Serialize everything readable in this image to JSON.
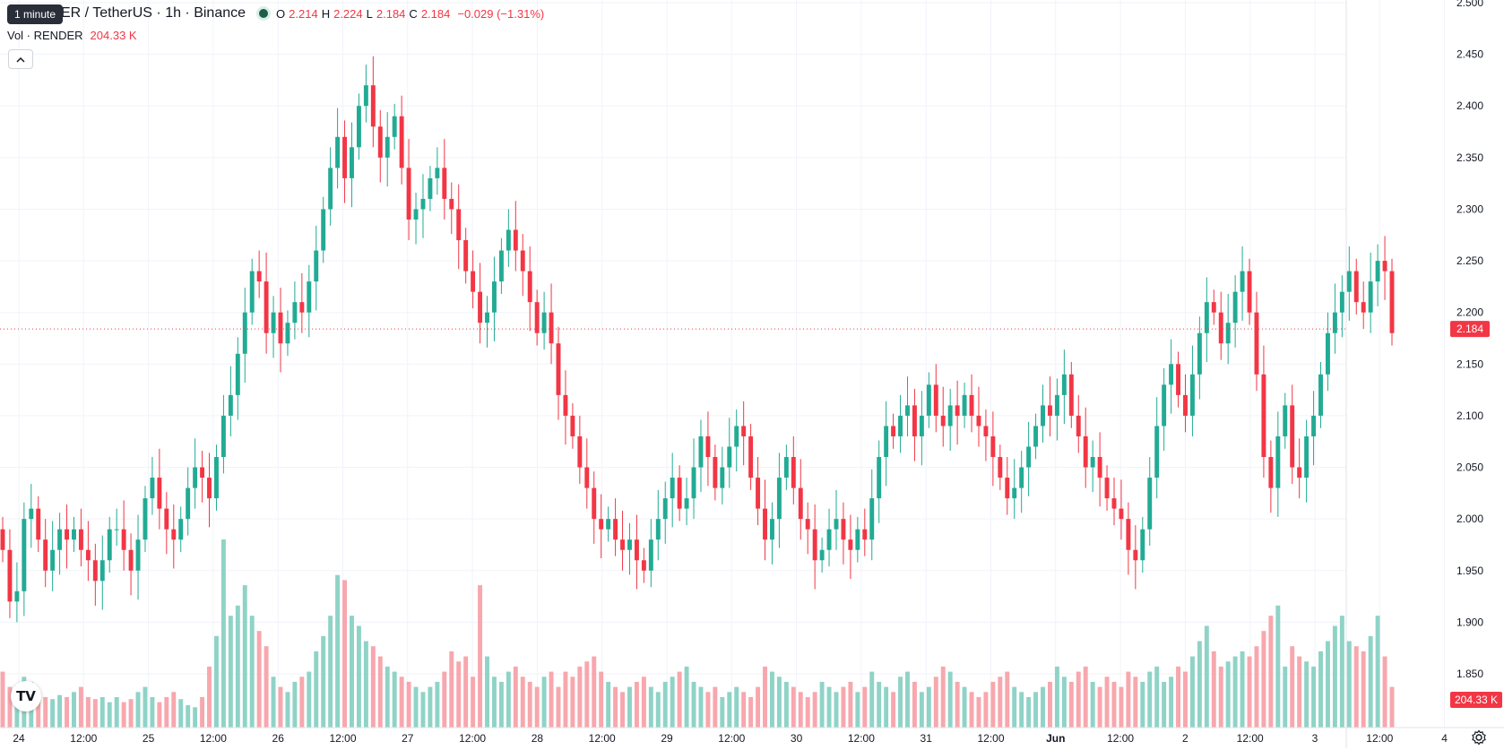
{
  "header": {
    "symbol_text": "ER / TetherUS · 1h · Binance",
    "tooltip": "1 minute",
    "ohlc": {
      "o_label": "O",
      "o": "2.214",
      "h_label": "H",
      "h": "2.224",
      "l_label": "L",
      "l": "2.184",
      "c_label": "C",
      "c": "2.184",
      "change": "−0.029 (−1.31%)"
    },
    "volume_label": "Vol · RENDER",
    "volume_value": "204.33 K",
    "collapse_icon": "chevron-up-icon",
    "logo_text": "TV",
    "settings_icon": "gear-icon"
  },
  "colors": {
    "up": "#22ab94",
    "down": "#f23645",
    "up_volume": "#8fd3c7",
    "down_volume": "#f7a7ad",
    "grid": "#f0f3fa"
  },
  "chart_data": {
    "type": "candlestick",
    "ylim": [
      1.85,
      2.5
    ],
    "y_ticks": [
      "2.500",
      "2.450",
      "2.400",
      "2.350",
      "2.300",
      "2.250",
      "2.200",
      "2.150",
      "2.100",
      "2.050",
      "2.000",
      "1.950",
      "1.900",
      "1.850"
    ],
    "x_ticks": [
      "24",
      "12:00",
      "25",
      "12:00",
      "26",
      "12:00",
      "27",
      "12:00",
      "28",
      "12:00",
      "29",
      "12:00",
      "30",
      "12:00",
      "31",
      "12:00",
      "Jun",
      "12:00",
      "2",
      "12:00",
      "3",
      "12:00",
      "4"
    ],
    "last_price": 2.184,
    "last_price_label": "2.184",
    "last_volume_label": "204.33 K",
    "closes": [
      1.97,
      1.92,
      1.93,
      2.0,
      2.01,
      1.98,
      1.95,
      1.97,
      1.99,
      1.98,
      1.99,
      1.97,
      1.96,
      1.94,
      1.96,
      1.99,
      1.99,
      1.97,
      1.95,
      1.98,
      2.02,
      2.04,
      2.01,
      1.99,
      1.98,
      2.0,
      2.03,
      2.05,
      2.04,
      2.02,
      2.06,
      2.1,
      2.12,
      2.16,
      2.2,
      2.24,
      2.23,
      2.18,
      2.2,
      2.17,
      2.19,
      2.21,
      2.2,
      2.23,
      2.26,
      2.3,
      2.34,
      2.37,
      2.33,
      2.36,
      2.4,
      2.42,
      2.38,
      2.35,
      2.37,
      2.39,
      2.34,
      2.29,
      2.3,
      2.31,
      2.33,
      2.34,
      2.31,
      2.3,
      2.27,
      2.24,
      2.22,
      2.19,
      2.2,
      2.23,
      2.26,
      2.28,
      2.26,
      2.24,
      2.21,
      2.18,
      2.2,
      2.17,
      2.12,
      2.1,
      2.08,
      2.05,
      2.03,
      2.0,
      1.99,
      2.0,
      1.98,
      1.97,
      1.98,
      1.96,
      1.95,
      1.98,
      2.0,
      2.02,
      2.04,
      2.01,
      2.02,
      2.05,
      2.08,
      2.06,
      2.03,
      2.05,
      2.07,
      2.09,
      2.08,
      2.04,
      2.01,
      1.98,
      2.0,
      2.04,
      2.06,
      2.03,
      2.0,
      1.99,
      1.96,
      1.97,
      1.99,
      2.0,
      1.98,
      1.97,
      1.99,
      1.98,
      2.02,
      2.06,
      2.09,
      2.08,
      2.1,
      2.11,
      2.08,
      2.1,
      2.13,
      2.1,
      2.09,
      2.11,
      2.1,
      2.12,
      2.1,
      2.09,
      2.08,
      2.06,
      2.04,
      2.02,
      2.03,
      2.05,
      2.07,
      2.09,
      2.11,
      2.1,
      2.12,
      2.14,
      2.1,
      2.08,
      2.05,
      2.06,
      2.04,
      2.02,
      2.01,
      2.0,
      1.97,
      1.96,
      1.99,
      2.04,
      2.09,
      2.13,
      2.15,
      2.12,
      2.1,
      2.14,
      2.18,
      2.21,
      2.2,
      2.17,
      2.19,
      2.22,
      2.24,
      2.2,
      2.14,
      2.06,
      2.03,
      2.08,
      2.11,
      2.05,
      2.04,
      2.08,
      2.1,
      2.14,
      2.18,
      2.2,
      2.22,
      2.24,
      2.21,
      2.2,
      2.23,
      2.25,
      2.24,
      2.18
    ],
    "volumes": [
      55,
      40,
      30,
      50,
      45,
      35,
      30,
      28,
      32,
      30,
      35,
      40,
      30,
      28,
      30,
      25,
      30,
      25,
      28,
      35,
      40,
      30,
      25,
      30,
      35,
      28,
      22,
      20,
      30,
      60,
      90,
      185,
      110,
      120,
      140,
      110,
      95,
      80,
      50,
      40,
      35,
      45,
      50,
      55,
      75,
      90,
      110,
      150,
      145,
      110,
      100,
      85,
      80,
      70,
      60,
      55,
      50,
      45,
      40,
      35,
      40,
      45,
      55,
      75,
      65,
      70,
      50,
      140,
      70,
      50,
      45,
      55,
      60,
      50,
      45,
      40,
      50,
      55,
      40,
      55,
      50,
      60,
      65,
      70,
      55,
      45,
      40,
      35,
      40,
      45,
      50,
      40,
      35,
      45,
      50,
      55,
      60,
      45,
      40,
      35,
      40,
      30,
      35,
      40,
      35,
      30,
      40,
      60,
      55,
      50,
      45,
      40,
      35,
      30,
      35,
      45,
      40,
      35,
      40,
      45,
      35,
      40,
      55,
      45,
      40,
      35,
      50,
      55,
      45,
      35,
      40,
      50,
      60,
      55,
      45,
      40,
      35,
      30,
      35,
      45,
      50,
      55,
      40,
      35,
      30,
      35,
      40,
      45,
      60,
      50,
      45,
      55,
      60,
      45,
      40,
      50,
      45,
      40,
      55,
      50,
      45,
      55,
      60,
      45,
      50,
      60,
      55,
      70,
      85,
      100,
      75,
      60,
      65,
      70,
      75,
      70,
      80,
      95,
      110,
      120,
      60,
      80,
      70,
      65,
      60,
      75,
      85,
      100,
      110,
      85,
      80,
      75,
      90,
      110,
      70,
      40
    ]
  }
}
